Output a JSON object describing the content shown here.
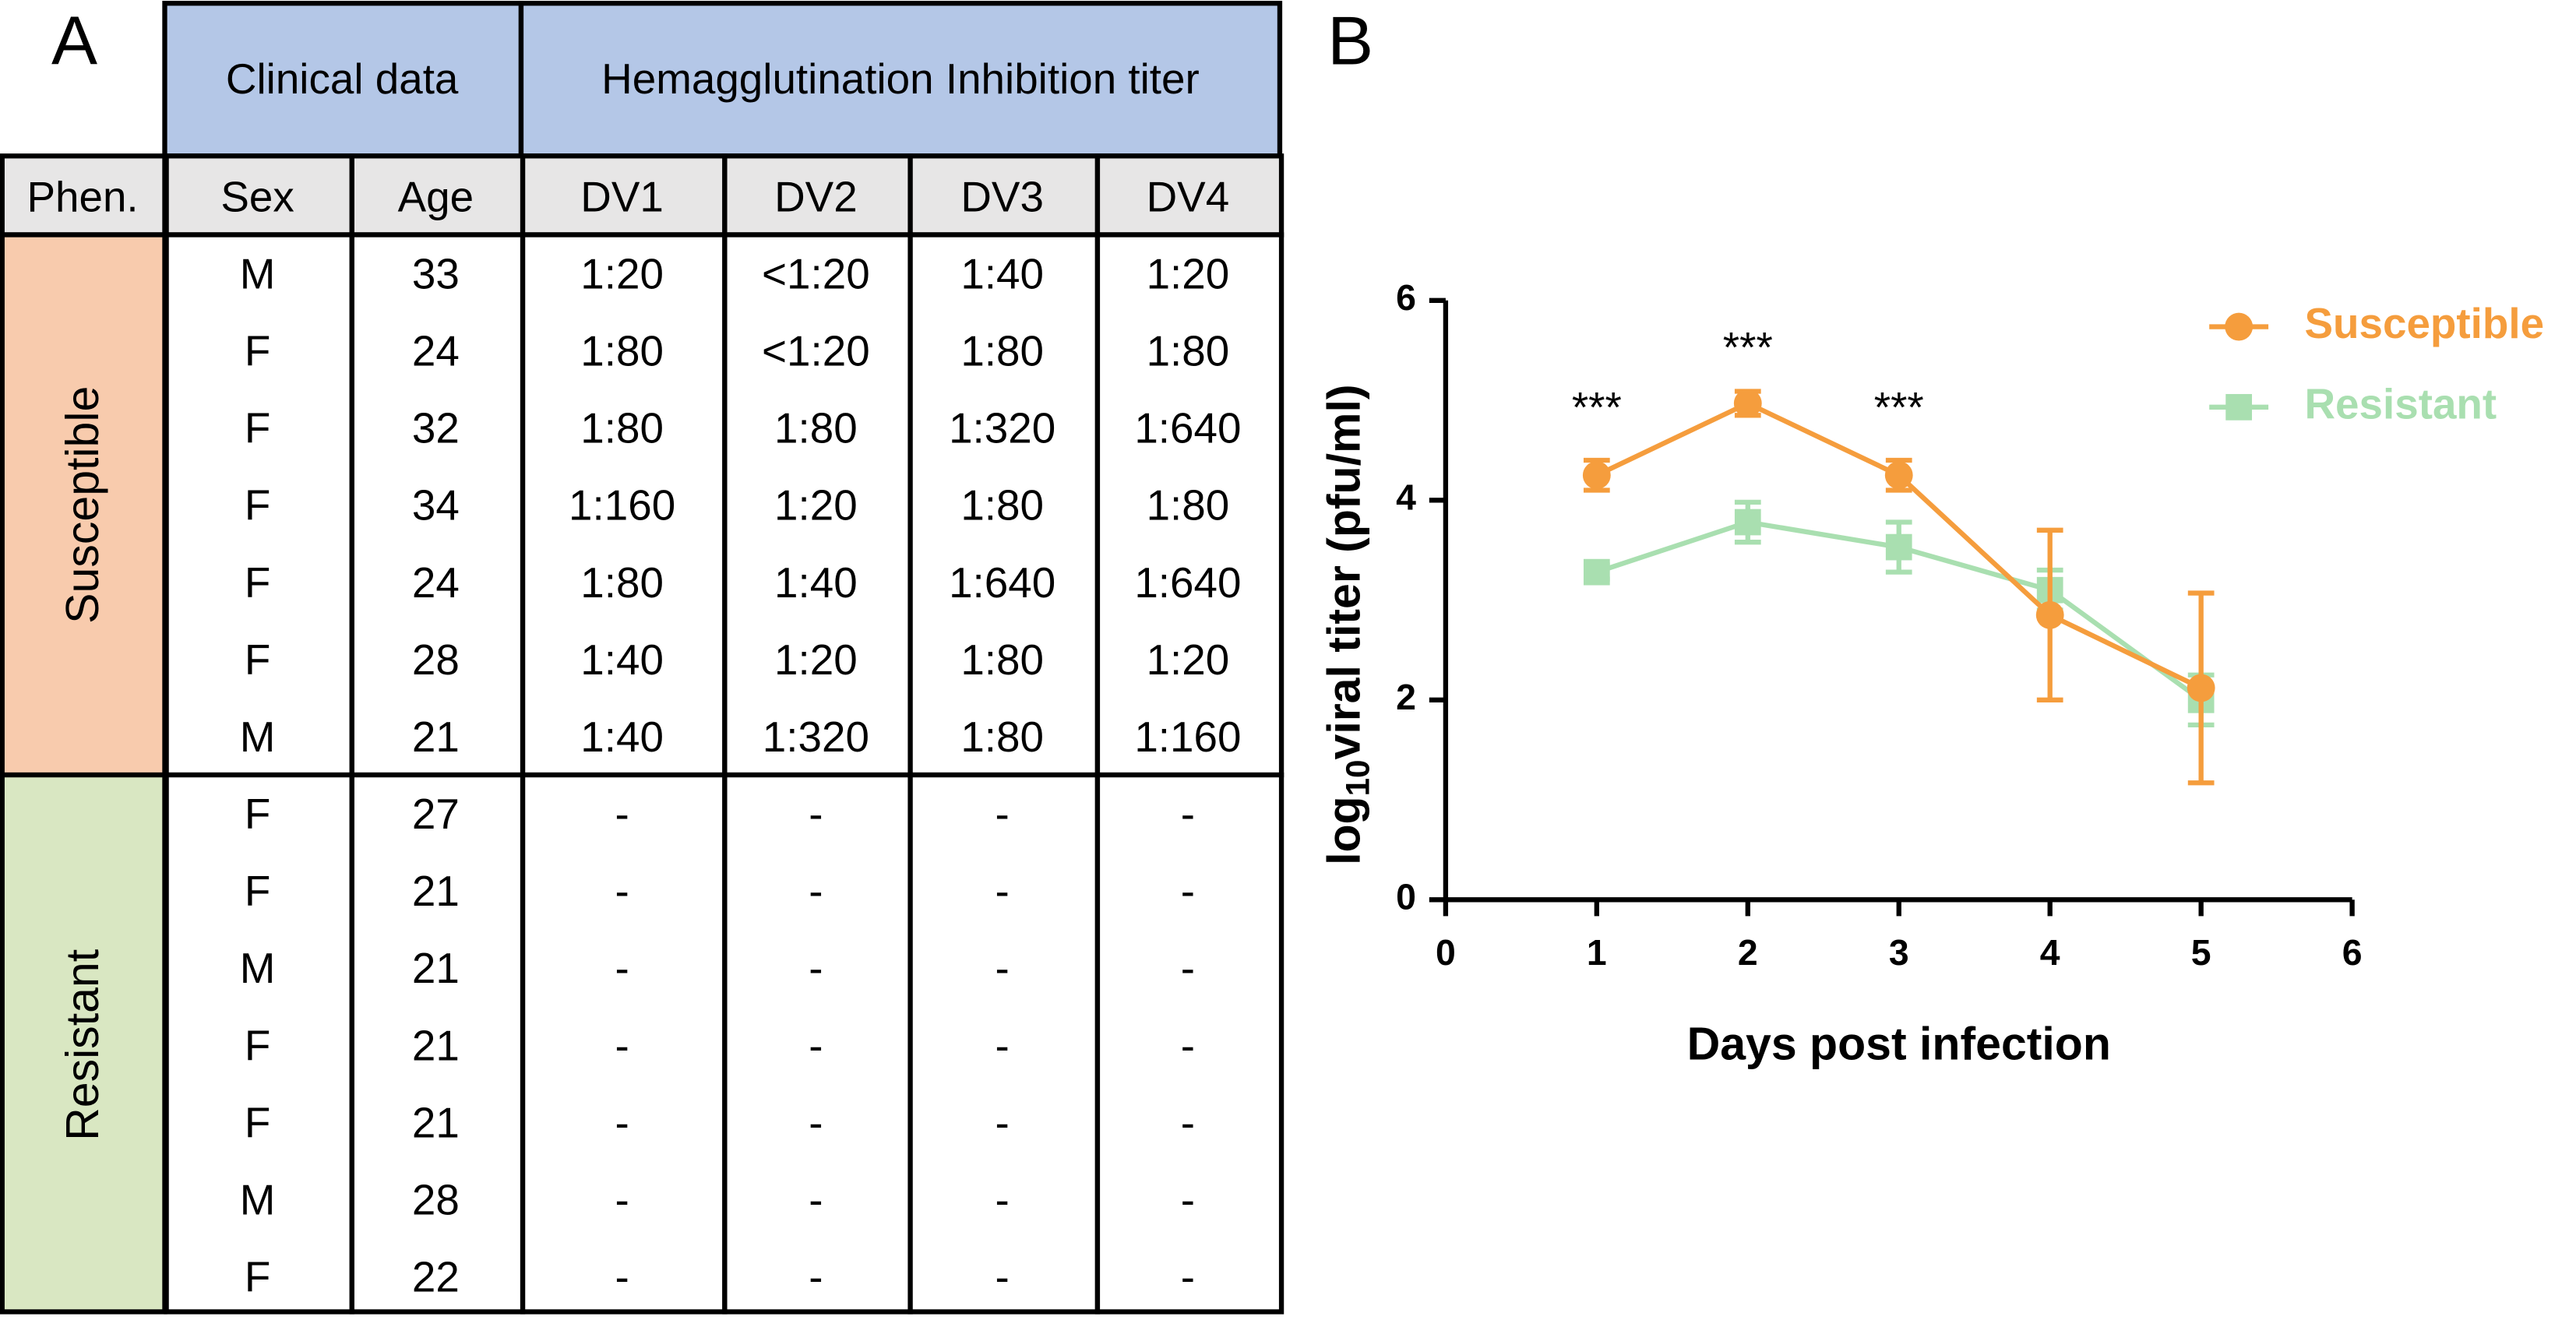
{
  "table": {
    "panel_label": "A",
    "group_headers": [
      "Clinical data",
      "Hemagglutination Inhibition titer"
    ],
    "columns": [
      "Phen.",
      "Sex",
      "Age",
      "DV1",
      "DV2",
      "DV3",
      "DV4"
    ],
    "groups": [
      {
        "name": "Susceptible",
        "color": "#f8cbad",
        "rows": [
          [
            "M",
            33,
            "1:20",
            "<1:20",
            "1:40",
            "1:20"
          ],
          [
            "F",
            24,
            "1:80",
            "<1:20",
            "1:80",
            "1:80"
          ],
          [
            "F",
            32,
            "1:80",
            "1:80",
            "1:320",
            "1:640"
          ],
          [
            "F",
            34,
            "1:160",
            "1:20",
            "1:80",
            "1:80"
          ],
          [
            "F",
            24,
            "1:80",
            "1:40",
            "1:640",
            "1:640"
          ],
          [
            "F",
            28,
            "1:40",
            "1:20",
            "1:80",
            "1:20"
          ],
          [
            "M",
            21,
            "1:40",
            "1:320",
            "1:80",
            "1:160"
          ]
        ]
      },
      {
        "name": "Resistant",
        "color": "#d9e7c2",
        "rows": [
          [
            "F",
            27,
            "-",
            "-",
            "-",
            "-"
          ],
          [
            "F",
            21,
            "-",
            "-",
            "-",
            "-"
          ],
          [
            "M",
            21,
            "-",
            "-",
            "-",
            "-"
          ],
          [
            "F",
            21,
            "-",
            "-",
            "-",
            "-"
          ],
          [
            "F",
            21,
            "-",
            "-",
            "-",
            "-"
          ],
          [
            "M",
            28,
            "-",
            "-",
            "-",
            "-"
          ],
          [
            "F",
            22,
            "-",
            "-",
            "-",
            "-"
          ]
        ]
      }
    ]
  },
  "chart_data": {
    "type": "line",
    "panel_label": "B",
    "x_label": "Days post infection",
    "y_label": {
      "main": "log",
      "sub": "10",
      "rest": "viral titer (pfu/ml)"
    },
    "x": [
      1,
      2,
      3,
      4,
      5
    ],
    "series": [
      {
        "name": "Susceptible",
        "color": "#f59d3d",
        "marker": "circle",
        "values": [
          4.25,
          4.97,
          4.25,
          2.85,
          2.12
        ],
        "errors": [
          0.15,
          0.12,
          0.15,
          0.85,
          0.95
        ]
      },
      {
        "name": "Resistant",
        "color": "#a9dfb0",
        "marker": "square",
        "values": [
          3.28,
          3.78,
          3.53,
          3.1,
          2.0
        ],
        "errors": [
          0.07,
          0.2,
          0.25,
          0.2,
          0.25
        ]
      }
    ],
    "annotations": [
      {
        "text": "***",
        "x": 1,
        "y": 4.9
      },
      {
        "text": "***",
        "x": 2,
        "y": 5.5
      },
      {
        "text": "***",
        "x": 3,
        "y": 4.9
      }
    ],
    "xlim": [
      0,
      6
    ],
    "ylim": [
      0,
      6
    ],
    "xticks": [
      0,
      1,
      2,
      3,
      4,
      5,
      6
    ],
    "yticks": [
      0,
      2,
      4,
      6
    ],
    "legend": "upper-right"
  }
}
